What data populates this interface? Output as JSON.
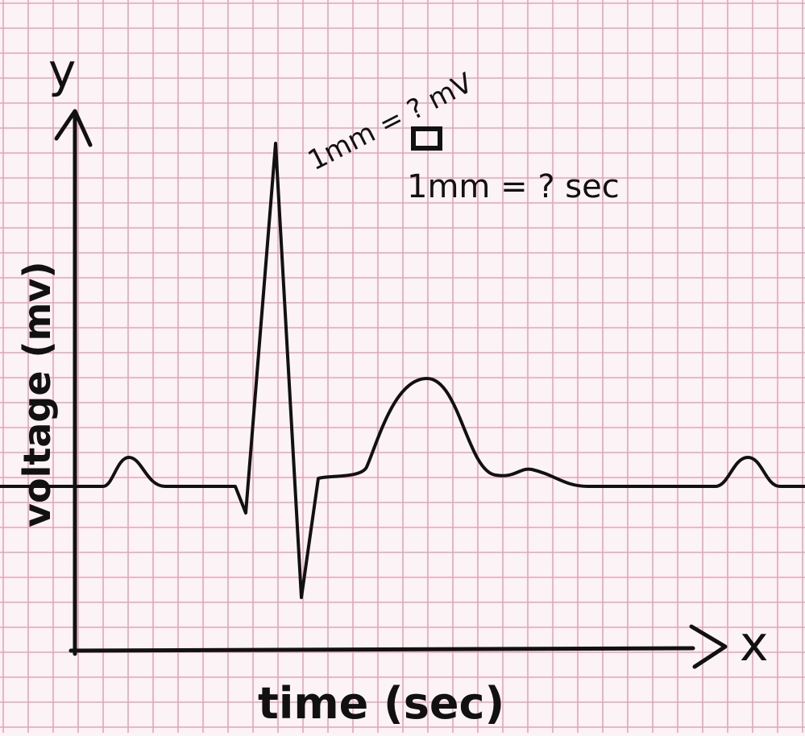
{
  "axes": {
    "y_letter": "y",
    "x_letter": "x",
    "y_label": "voltage (mv)",
    "x_label": "time (sec)"
  },
  "annotations": {
    "vertical_scale": "1mm = ? mV",
    "horizontal_scale": "1mm = ? sec"
  },
  "colors": {
    "paper": "#fbf3f6",
    "grid_line": "#e3a4b8",
    "ink": "#111111"
  }
}
